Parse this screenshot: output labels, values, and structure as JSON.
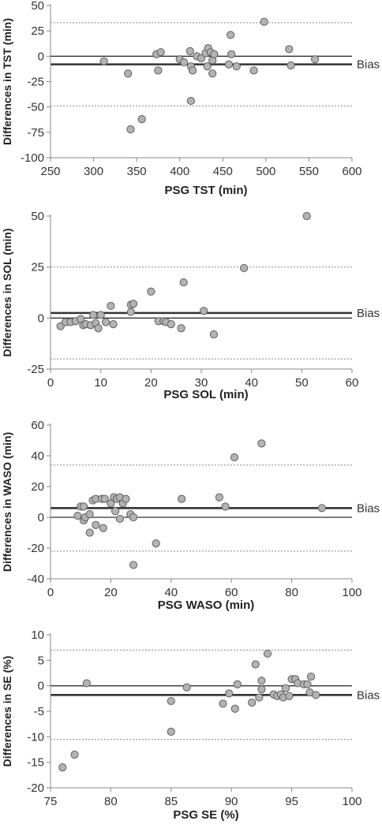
{
  "chart_data": [
    {
      "type": "scatter",
      "xlabel": "PSG TST (min)",
      "ylabel": "Differences in TST (min)",
      "xlim": [
        250,
        600
      ],
      "ylim": [
        -100,
        50
      ],
      "xticks": [
        250,
        300,
        350,
        400,
        450,
        500,
        550,
        600
      ],
      "yticks": [
        -100,
        -75,
        -50,
        -25,
        0,
        25,
        50
      ],
      "bias": -8,
      "upper_loa": 33,
      "lower_loa": -49,
      "bias_label": "Bias",
      "points": [
        [
          312,
          -5
        ],
        [
          340,
          -17
        ],
        [
          343,
          -72
        ],
        [
          356,
          -62
        ],
        [
          373,
          2
        ],
        [
          375,
          -14
        ],
        [
          378,
          4
        ],
        [
          400,
          -3
        ],
        [
          405,
          -6
        ],
        [
          412,
          5
        ],
        [
          413,
          -44
        ],
        [
          413,
          -10
        ],
        [
          415,
          -14
        ],
        [
          420,
          0
        ],
        [
          425,
          -2
        ],
        [
          430,
          3
        ],
        [
          432,
          -10
        ],
        [
          433,
          8
        ],
        [
          436,
          4
        ],
        [
          438,
          -4
        ],
        [
          438,
          -17
        ],
        [
          440,
          2
        ],
        [
          457,
          -8
        ],
        [
          459,
          21
        ],
        [
          460,
          2
        ],
        [
          466,
          -10
        ],
        [
          486,
          -14
        ],
        [
          498,
          34
        ],
        [
          527,
          7
        ],
        [
          529,
          -9
        ],
        [
          557,
          -3
        ]
      ]
    },
    {
      "type": "scatter",
      "xlabel": "PSG SOL (min)",
      "ylabel": "Differences in SOL (min)",
      "xlim": [
        0,
        60
      ],
      "ylim": [
        -25,
        50
      ],
      "xticks": [
        0,
        10,
        20,
        30,
        40,
        50,
        60
      ],
      "yticks": [
        -25,
        0,
        25,
        50
      ],
      "bias": 2.5,
      "upper_loa": 25,
      "lower_loa": -20,
      "bias_label": "Bias",
      "points": [
        [
          2,
          -4
        ],
        [
          3,
          -2
        ],
        [
          4,
          -2
        ],
        [
          5,
          -1.5
        ],
        [
          6,
          -0.5
        ],
        [
          6.5,
          -3.5
        ],
        [
          7,
          -3
        ],
        [
          8,
          -3.5
        ],
        [
          8.5,
          1.5
        ],
        [
          9,
          -2.5
        ],
        [
          9.5,
          -5
        ],
        [
          10,
          1.5
        ],
        [
          11,
          -2
        ],
        [
          12,
          6
        ],
        [
          12.5,
          -3
        ],
        [
          16,
          3
        ],
        [
          16,
          6.5
        ],
        [
          16.5,
          7
        ],
        [
          20,
          13
        ],
        [
          21.5,
          -1.5
        ],
        [
          22.5,
          -1.5
        ],
        [
          23,
          -2
        ],
        [
          24,
          -3
        ],
        [
          26,
          -5
        ],
        [
          26.5,
          17.5
        ],
        [
          30.5,
          3.5
        ],
        [
          32.5,
          -8
        ],
        [
          38.5,
          24.5
        ],
        [
          51,
          50
        ]
      ]
    },
    {
      "type": "scatter",
      "xlabel": "PSG WASO (min)",
      "ylabel": "Differences in WASO (min)",
      "xlim": [
        0,
        100
      ],
      "ylim": [
        -40,
        60
      ],
      "xticks": [
        0,
        20,
        40,
        60,
        80,
        100
      ],
      "yticks": [
        -40,
        -20,
        0,
        20,
        40,
        60
      ],
      "bias": 6,
      "upper_loa": 34,
      "lower_loa": -22,
      "bias_label": "Bias",
      "points": [
        [
          9,
          1
        ],
        [
          10,
          7
        ],
        [
          11,
          7
        ],
        [
          11,
          -2
        ],
        [
          11.5,
          0
        ],
        [
          13,
          2
        ],
        [
          13,
          -10
        ],
        [
          14,
          11
        ],
        [
          15,
          -5
        ],
        [
          15,
          12
        ],
        [
          17,
          12
        ],
        [
          17.5,
          -7
        ],
        [
          18,
          12
        ],
        [
          20,
          9
        ],
        [
          21,
          13
        ],
        [
          21.5,
          4
        ],
        [
          22,
          12
        ],
        [
          23,
          13
        ],
        [
          23,
          -1
        ],
        [
          24,
          9
        ],
        [
          25,
          12
        ],
        [
          26.5,
          2
        ],
        [
          27.5,
          0
        ],
        [
          27.5,
          -31
        ],
        [
          35,
          -17
        ],
        [
          43.5,
          12
        ],
        [
          56,
          13
        ],
        [
          58,
          7
        ],
        [
          61,
          39
        ],
        [
          70,
          48
        ],
        [
          90,
          6
        ]
      ]
    },
    {
      "type": "scatter",
      "xlabel": "PSG SE (%)",
      "ylabel": "Differences in SE (%)",
      "xlim": [
        75,
        100
      ],
      "ylim": [
        -20,
        10
      ],
      "xticks": [
        75,
        80,
        85,
        90,
        95,
        100
      ],
      "yticks": [
        -20,
        -15,
        -10,
        -5,
        0,
        5,
        10
      ],
      "bias": -1.8,
      "upper_loa": 7,
      "lower_loa": -10.5,
      "bias_label": "Bias",
      "points": [
        [
          76,
          -16
        ],
        [
          77,
          -13.5
        ],
        [
          78,
          0.5
        ],
        [
          85,
          -3
        ],
        [
          85,
          -9
        ],
        [
          86.3,
          -0.3
        ],
        [
          89.3,
          -3.5
        ],
        [
          89.8,
          -1.5
        ],
        [
          90.3,
          -4.5
        ],
        [
          90.5,
          0.3
        ],
        [
          91.7,
          -3.3
        ],
        [
          92,
          4.2
        ],
        [
          92.3,
          -2.3
        ],
        [
          92.5,
          1
        ],
        [
          92.5,
          -0.7
        ],
        [
          93,
          6.3
        ],
        [
          93.5,
          -1.7
        ],
        [
          93.8,
          -2
        ],
        [
          94.1,
          -1.7
        ],
        [
          94.3,
          -2.3
        ],
        [
          94.5,
          -0.5
        ],
        [
          94.8,
          -2
        ],
        [
          95,
          1.3
        ],
        [
          95.3,
          1.3
        ],
        [
          95.5,
          0.5
        ],
        [
          96,
          0.3
        ],
        [
          96.3,
          0.3
        ],
        [
          96.5,
          -1.3
        ],
        [
          96.6,
          1.8
        ],
        [
          97,
          -1.8
        ]
      ]
    }
  ]
}
